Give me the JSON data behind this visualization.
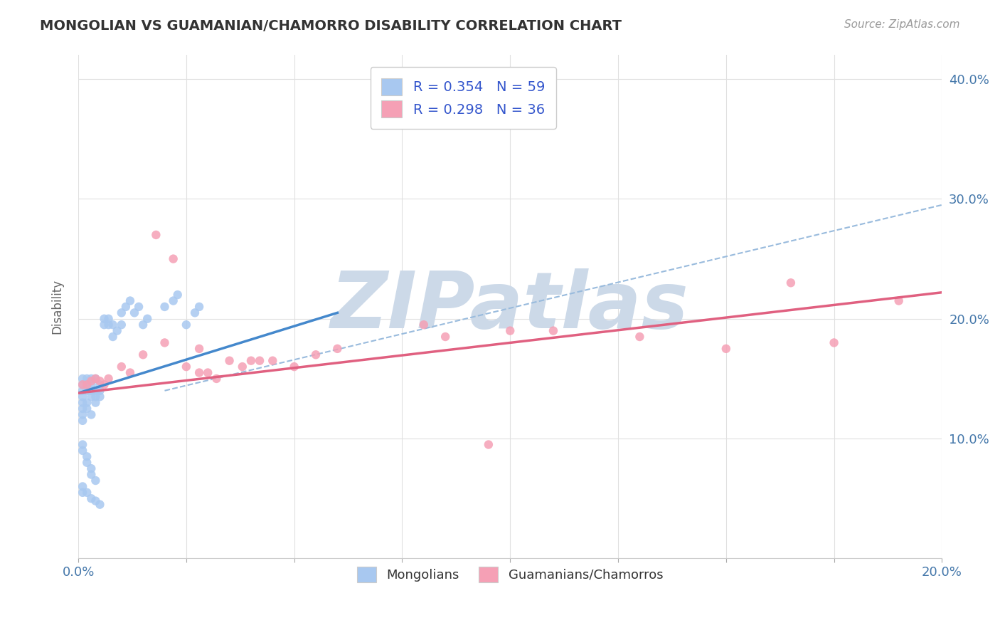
{
  "title": "MONGOLIAN VS GUAMANIAN/CHAMORRO DISABILITY CORRELATION CHART",
  "source": "Source: ZipAtlas.com",
  "ylabel": "Disability",
  "xlim": [
    0.0,
    0.2
  ],
  "ylim": [
    0.0,
    0.42
  ],
  "xticks": [
    0.0,
    0.025,
    0.05,
    0.075,
    0.1,
    0.125,
    0.15,
    0.175,
    0.2
  ],
  "yticks": [
    0.0,
    0.1,
    0.2,
    0.3,
    0.4
  ],
  "mongolian_R": 0.354,
  "mongolian_N": 59,
  "guamanian_R": 0.298,
  "guamanian_N": 36,
  "mongolian_color": "#a8c8f0",
  "guamanian_color": "#f5a0b5",
  "mongolian_line_color": "#4488cc",
  "guamanian_line_color": "#e06080",
  "dashed_line_color": "#99bbdd",
  "watermark": "ZIPatlas",
  "watermark_color": "#ccd9e8",
  "background_color": "#ffffff",
  "grid_color": "#e0e0e0",
  "mongolian_x": [
    0.001,
    0.001,
    0.001,
    0.001,
    0.001,
    0.001,
    0.001,
    0.001,
    0.002,
    0.002,
    0.002,
    0.002,
    0.002,
    0.003,
    0.003,
    0.003,
    0.003,
    0.003,
    0.004,
    0.004,
    0.004,
    0.004,
    0.005,
    0.005,
    0.005,
    0.006,
    0.006,
    0.007,
    0.007,
    0.008,
    0.008,
    0.009,
    0.01,
    0.01,
    0.011,
    0.012,
    0.013,
    0.014,
    0.015,
    0.016,
    0.02,
    0.022,
    0.023,
    0.025,
    0.027,
    0.028,
    0.001,
    0.001,
    0.002,
    0.002,
    0.003,
    0.003,
    0.004,
    0.001,
    0.001,
    0.002,
    0.003,
    0.004,
    0.005
  ],
  "mongolian_y": [
    0.13,
    0.135,
    0.14,
    0.145,
    0.15,
    0.125,
    0.12,
    0.115,
    0.14,
    0.145,
    0.15,
    0.13,
    0.125,
    0.135,
    0.14,
    0.145,
    0.15,
    0.12,
    0.13,
    0.135,
    0.14,
    0.15,
    0.135,
    0.14,
    0.145,
    0.2,
    0.195,
    0.195,
    0.2,
    0.185,
    0.195,
    0.19,
    0.195,
    0.205,
    0.21,
    0.215,
    0.205,
    0.21,
    0.195,
    0.2,
    0.21,
    0.215,
    0.22,
    0.195,
    0.205,
    0.21,
    0.095,
    0.09,
    0.085,
    0.08,
    0.075,
    0.07,
    0.065,
    0.06,
    0.055,
    0.055,
    0.05,
    0.048,
    0.045
  ],
  "guamanian_x": [
    0.001,
    0.002,
    0.003,
    0.004,
    0.005,
    0.006,
    0.007,
    0.01,
    0.012,
    0.015,
    0.018,
    0.02,
    0.025,
    0.028,
    0.03,
    0.035,
    0.038,
    0.04,
    0.045,
    0.05,
    0.055,
    0.06,
    0.08,
    0.085,
    0.1,
    0.13,
    0.15,
    0.165,
    0.175,
    0.19,
    0.028,
    0.032,
    0.022,
    0.042,
    0.095,
    0.11
  ],
  "guamanian_y": [
    0.145,
    0.145,
    0.148,
    0.15,
    0.148,
    0.145,
    0.15,
    0.16,
    0.155,
    0.17,
    0.27,
    0.18,
    0.16,
    0.175,
    0.155,
    0.165,
    0.16,
    0.165,
    0.165,
    0.16,
    0.17,
    0.175,
    0.195,
    0.185,
    0.19,
    0.185,
    0.175,
    0.23,
    0.18,
    0.215,
    0.155,
    0.15,
    0.25,
    0.165,
    0.095,
    0.19
  ],
  "mongolian_trend": [
    0.0,
    0.06
  ],
  "mongolian_trend_y": [
    0.138,
    0.205
  ],
  "guamanian_trend": [
    0.0,
    0.2
  ],
  "guamanian_trend_y": [
    0.138,
    0.222
  ],
  "dashed_trend": [
    0.02,
    0.2
  ],
  "dashed_trend_y": [
    0.14,
    0.295
  ]
}
